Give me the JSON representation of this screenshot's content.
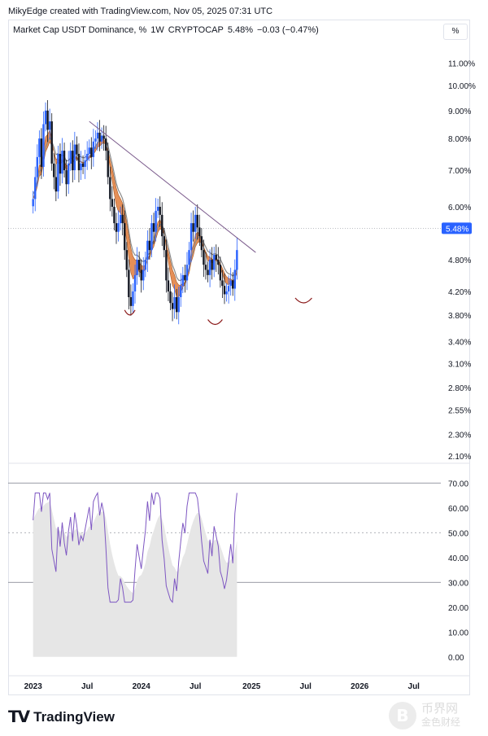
{
  "header": {
    "credit": "MikyEdge created with TradingView.com, Nov 05, 2025 07:31 UTC"
  },
  "symbol": {
    "name": "Market Cap USDT Dominance, %",
    "interval": "1W",
    "exchange": "CRYPTOCAP",
    "last": "5.48%",
    "change": "−0.03 (−0.47%)"
  },
  "scale_button": "%",
  "footer": {
    "brand": "TradingView"
  },
  "watermark": {
    "glyph": "B",
    "text": "币界网",
    "sub": "金色财经"
  },
  "colors": {
    "up": "#2962ff",
    "down": "#131722",
    "ema_band": "#e07b39",
    "ema_line": "#8a8a8a",
    "trendline": "#7b5b8c",
    "arc": "#8b1a1a",
    "rsi": "#7e57c2",
    "rsi_area": "#e6e6e6",
    "price_tag": "#2962ff"
  },
  "chart_data": [
    {
      "type": "candlestick",
      "title": "Market Cap USDT Dominance, %",
      "y_scale": "log",
      "ylim": [
        2.05,
        12.0
      ],
      "y_ticks": [
        "11.00%",
        "10.00%",
        "9.00%",
        "8.00%",
        "7.00%",
        "6.00%",
        "4.80%",
        "4.20%",
        "3.80%",
        "3.40%",
        "3.10%",
        "2.80%",
        "2.55%",
        "2.30%",
        "2.10%"
      ],
      "y_tick_values": [
        11.0,
        10.0,
        9.0,
        8.0,
        7.0,
        6.0,
        4.8,
        4.2,
        3.8,
        3.4,
        3.1,
        2.8,
        2.55,
        2.3,
        2.1
      ],
      "x_ticks": [
        "2023",
        "Jul",
        "2024",
        "Jul",
        "2025",
        "Jul",
        "2026",
        "Jul"
      ],
      "x_tick_weeks": [
        0,
        26,
        52,
        78,
        105,
        131,
        157,
        183
      ],
      "x_range_weeks": [
        -12,
        196
      ],
      "last_price_label": "5.48%",
      "last_price": 5.48,
      "close_weekly": [
        6.2,
        6.8,
        7.4,
        8.0,
        7.1,
        8.5,
        9.0,
        8.3,
        8.6,
        7.2,
        6.8,
        6.4,
        7.5,
        6.9,
        7.6,
        7.0,
        6.6,
        7.2,
        7.6,
        7.0,
        7.8,
        7.5,
        7.0,
        7.2,
        7.1,
        7.3,
        7.5,
        7.7,
        7.4,
        7.9,
        8.0,
        8.2,
        7.9,
        8.1,
        8.0,
        7.6,
        6.8,
        6.2,
        6.0,
        5.6,
        5.4,
        5.6,
        5.8,
        5.6,
        5.0,
        4.6,
        4.1,
        3.95,
        4.2,
        4.5,
        4.8,
        4.6,
        4.4,
        4.6,
        4.8,
        5.2,
        5.0,
        5.6,
        5.4,
        5.9,
        6.0,
        5.8,
        5.3,
        5.0,
        4.4,
        4.2,
        4.0,
        3.9,
        4.1,
        3.85,
        4.1,
        4.3,
        4.5,
        4.4,
        4.7,
        5.0,
        5.6,
        5.4,
        5.8,
        5.5,
        5.3,
        5.0,
        4.7,
        4.6,
        4.5,
        4.8,
        4.6,
        4.9,
        4.8,
        4.7,
        4.4,
        4.3,
        4.15,
        4.2,
        4.3,
        4.4,
        4.25,
        4.6,
        5.0
      ],
      "rsi_ylim": [
        -5,
        75
      ],
      "rsi_ticks": [
        "70.00",
        "60.00",
        "50.00",
        "40.00",
        "30.00",
        "20.00",
        "10.00",
        "0.00"
      ],
      "rsi_tick_values": [
        70,
        60,
        50,
        40,
        30,
        20,
        10,
        0
      ],
      "rsi_levels": [
        70,
        30
      ],
      "rsi_mid": 50
    }
  ]
}
